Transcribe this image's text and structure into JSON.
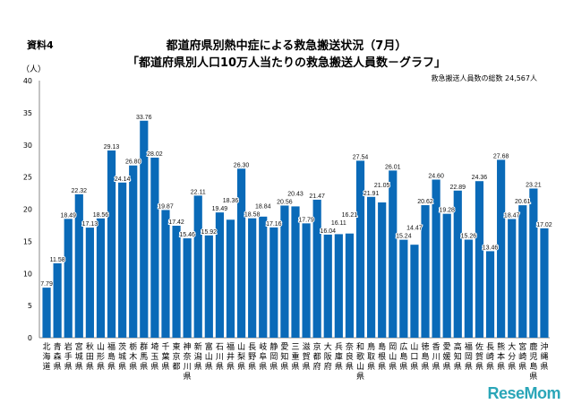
{
  "header": {
    "doc_label": "資料4",
    "title_line1": "都道府県別熱中症による救急搬送状況（7月）",
    "title_line2": "「都道府県別人口10万人当たりの救急搬送人員数－グラフ」",
    "total_note": "救急搬送人員数の総数 24,567人",
    "logo": "ReseMom"
  },
  "chart_data": {
    "type": "bar",
    "title": "「都道府県別人口10万人当たりの救急搬送人員数－グラフ」",
    "ylabel": "（人）",
    "ylim": [
      0,
      40
    ],
    "yticks": [
      0,
      5,
      10,
      15,
      20,
      25,
      30,
      35,
      40
    ],
    "grid": false,
    "bar_color": "#0a6ab8",
    "categories": [
      "北海道",
      "青森県",
      "岩手県",
      "宮城県",
      "秋田県",
      "山形県",
      "福島県",
      "茨城県",
      "栃木県",
      "群馬県",
      "埼玉県",
      "千葉県",
      "東京都",
      "神奈川県",
      "新潟県",
      "富山県",
      "石川県",
      "福井県",
      "山梨県",
      "長野県",
      "岐阜県",
      "静岡県",
      "愛知県",
      "三重県",
      "滋賀県",
      "京都府",
      "大阪府",
      "兵庫県",
      "奈良県",
      "和歌山県",
      "鳥取県",
      "島根県",
      "岡山県",
      "広島県",
      "山口県",
      "徳島県",
      "香川県",
      "愛媛県",
      "高知県",
      "福岡県",
      "佐賀県",
      "長崎県",
      "熊本県",
      "大分県",
      "宮崎県",
      "鹿児島県",
      "沖縄県"
    ],
    "values": [
      7.79,
      11.58,
      18.49,
      22.32,
      17.13,
      18.56,
      29.13,
      24.14,
      26.8,
      33.76,
      28.02,
      19.87,
      17.42,
      15.46,
      22.11,
      15.92,
      19.49,
      18.36,
      26.3,
      18.58,
      18.84,
      17.16,
      20.56,
      20.43,
      17.79,
      21.47,
      16.04,
      16.11,
      16.21,
      27.54,
      21.91,
      21.05,
      26.01,
      15.24,
      14.47,
      20.62,
      24.6,
      19.28,
      22.89,
      15.26,
      24.36,
      13.46,
      27.68,
      18.47,
      20.61,
      23.21,
      17.02
    ],
    "value_labels": [
      "7.79",
      "11.58",
      "18.49",
      "22.32",
      "17.13",
      "18.56",
      "29.13",
      "24.14",
      "26.80",
      "33.76",
      "28.02",
      "19.87",
      "17.42",
      "15.46",
      "22.11",
      "15.92",
      "19.49",
      "18.36",
      "26.30",
      "18.58",
      "18.84",
      "17.16",
      "20.56",
      "20.43",
      "17.79",
      "21.47",
      "16.04",
      "16.11",
      "16.21",
      "27.54",
      "21.91",
      "21.05",
      "26.01",
      "15.24",
      "14.47",
      "20.62",
      "24.60",
      "19.28",
      "22.89",
      "15.26",
      "24.36",
      "13.46",
      "27.68",
      "18.47",
      "20.61",
      "23.21",
      "17.02"
    ]
  }
}
